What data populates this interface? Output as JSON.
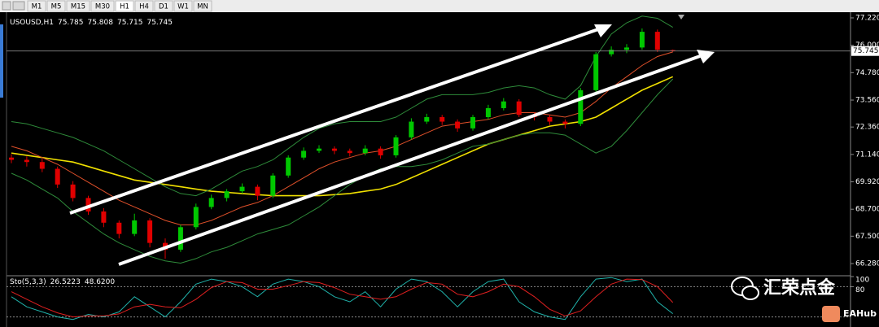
{
  "toolbar": {
    "timeframes": [
      "M1",
      "M5",
      "M15",
      "M30",
      "H1",
      "H4",
      "D1",
      "W1",
      "MN"
    ]
  },
  "watermark": {
    "text": "汇荣点金",
    "badge": "EAHub"
  },
  "chart_data": [
    {
      "type": "candlestick",
      "title": "USOUSD,H1",
      "ohlc": [
        75.785,
        75.808,
        75.715,
        75.745
      ],
      "up_color": "#00c800",
      "down_color": "#e00000",
      "open": [
        71.0,
        70.9,
        70.8,
        70.5,
        69.8,
        69.2,
        68.6,
        68.1,
        67.6,
        68.2,
        67.2,
        66.9,
        67.9,
        68.8,
        69.2,
        69.5,
        69.7,
        69.3,
        70.2,
        71.0,
        71.3,
        71.4,
        71.3,
        71.2,
        71.4,
        71.1,
        71.9,
        72.6,
        72.8,
        72.6,
        72.3,
        72.8,
        73.2,
        73.5,
        72.9,
        72.8,
        72.6,
        72.5,
        74.0,
        75.6,
        75.8,
        75.9,
        76.6,
        75.785
      ],
      "high": [
        71.15,
        71.05,
        70.95,
        70.6,
        69.95,
        69.3,
        68.75,
        68.2,
        68.5,
        68.3,
        67.4,
        68.0,
        68.95,
        69.35,
        69.6,
        69.85,
        69.8,
        70.3,
        71.1,
        71.45,
        71.55,
        71.5,
        71.4,
        71.55,
        71.5,
        72.0,
        72.75,
        72.95,
        72.9,
        72.7,
        72.9,
        73.35,
        73.65,
        73.6,
        73.0,
        72.9,
        72.7,
        74.1,
        75.7,
        75.95,
        76.05,
        76.75,
        76.7,
        75.808
      ],
      "low": [
        70.75,
        70.6,
        70.35,
        69.65,
        69.05,
        68.45,
        67.9,
        67.4,
        67.5,
        67.0,
        66.5,
        66.8,
        67.8,
        68.7,
        69.05,
        69.4,
        69.1,
        69.2,
        70.1,
        70.9,
        71.2,
        71.15,
        71.05,
        71.1,
        70.95,
        71.0,
        71.8,
        72.5,
        72.45,
        72.15,
        72.2,
        72.7,
        73.1,
        72.8,
        72.65,
        72.45,
        72.3,
        72.4,
        73.9,
        75.5,
        75.65,
        75.8,
        75.7,
        75.715
      ],
      "close": [
        70.9,
        70.8,
        70.5,
        69.8,
        69.2,
        68.6,
        68.1,
        67.6,
        68.2,
        67.2,
        66.9,
        67.9,
        68.8,
        69.2,
        69.5,
        69.7,
        69.3,
        70.2,
        71.0,
        71.3,
        71.4,
        71.3,
        71.2,
        71.4,
        71.1,
        71.9,
        72.6,
        72.8,
        72.6,
        72.3,
        72.8,
        73.2,
        73.5,
        72.9,
        72.8,
        72.6,
        72.5,
        74.0,
        75.6,
        75.8,
        75.9,
        76.6,
        75.8,
        75.745
      ],
      "series": [
        {
          "color": "#f0e000",
          "values": [
            71.2,
            71.1,
            71.0,
            70.9,
            70.8,
            70.6,
            70.4,
            70.2,
            70.0,
            69.9,
            69.8,
            69.7,
            69.6,
            69.5,
            69.45,
            69.4,
            69.35,
            69.3,
            69.3,
            69.3,
            69.3,
            69.35,
            69.4,
            69.5,
            69.6,
            69.8,
            70.1,
            70.4,
            70.7,
            71.0,
            71.3,
            71.6,
            71.8,
            72.0,
            72.2,
            72.4,
            72.5,
            72.6,
            72.8,
            73.2,
            73.6,
            74.0,
            74.3,
            74.6
          ]
        },
        {
          "color": "#e0502a",
          "values": [
            71.5,
            71.3,
            71.0,
            70.7,
            70.3,
            69.9,
            69.5,
            69.1,
            68.8,
            68.5,
            68.2,
            68.0,
            68.0,
            68.2,
            68.5,
            68.8,
            69.0,
            69.3,
            69.7,
            70.1,
            70.5,
            70.8,
            71.0,
            71.2,
            71.3,
            71.5,
            71.8,
            72.1,
            72.4,
            72.5,
            72.6,
            72.7,
            72.9,
            73.0,
            73.0,
            72.9,
            72.8,
            73.0,
            73.5,
            74.1,
            74.6,
            75.1,
            75.5,
            75.7
          ]
        },
        {
          "color": "#2e8b3a",
          "values": [
            72.6,
            72.5,
            72.3,
            72.1,
            71.9,
            71.6,
            71.3,
            70.9,
            70.5,
            70.1,
            69.7,
            69.4,
            69.3,
            69.6,
            70.0,
            70.4,
            70.6,
            70.9,
            71.4,
            71.9,
            72.3,
            72.5,
            72.6,
            72.6,
            72.6,
            72.8,
            73.2,
            73.6,
            73.8,
            73.8,
            73.8,
            73.9,
            74.1,
            74.2,
            74.1,
            73.8,
            73.6,
            74.2,
            75.5,
            76.5,
            77.0,
            77.3,
            77.2,
            76.8
          ]
        },
        {
          "color": "#2e8b3a",
          "values": [
            70.3,
            70.0,
            69.6,
            69.2,
            68.6,
            68.1,
            67.6,
            67.2,
            66.9,
            66.6,
            66.4,
            66.3,
            66.5,
            66.8,
            67.0,
            67.3,
            67.6,
            67.8,
            68.0,
            68.4,
            68.8,
            69.3,
            69.8,
            70.2,
            70.5,
            70.6,
            70.6,
            70.7,
            70.9,
            71.2,
            71.5,
            71.6,
            71.8,
            72.0,
            72.1,
            72.1,
            72.0,
            71.6,
            71.2,
            71.5,
            72.2,
            73.0,
            73.8,
            74.5
          ]
        }
      ],
      "ylim": [
        65.81,
        77.4
      ],
      "yticks": [
        {
          "value": 77.22,
          "label": "77.220"
        },
        {
          "value": 76.0,
          "label": "76.000"
        },
        {
          "value": 74.78,
          "label": "74.780"
        },
        {
          "value": 73.56,
          "label": "73.560"
        },
        {
          "value": 72.36,
          "label": "72.360"
        },
        {
          "value": 71.14,
          "label": "71.140"
        },
        {
          "value": 69.92,
          "label": "69.920"
        },
        {
          "value": 68.7,
          "label": "68.700"
        },
        {
          "value": 67.5,
          "label": "67.500"
        },
        {
          "value": 66.28,
          "label": "66.280"
        }
      ]
    },
    {
      "type": "line",
      "title": "Sto(5,3,3)",
      "values": [
        26.5223,
        {
          "value": 48.62,
          "label": "48.6200"
        }
      ],
      "series": [
        {
          "color": "#20b2aa",
          "values": [
            60,
            40,
            30,
            20,
            15,
            25,
            20,
            30,
            60,
            40,
            20,
            50,
            85,
            95,
            90,
            80,
            60,
            85,
            95,
            90,
            80,
            60,
            50,
            70,
            40,
            75,
            95,
            90,
            70,
            40,
            70,
            90,
            95,
            50,
            30,
            20,
            15,
            60,
            95,
            98,
            90,
            95,
            50,
            26.5223
          ]
        },
        {
          "color": "#e02020",
          "values": [
            70,
            55,
            40,
            28,
            20,
            22,
            22,
            26,
            40,
            45,
            40,
            38,
            55,
            78,
            90,
            88,
            75,
            75,
            82,
            90,
            88,
            78,
            65,
            60,
            55,
            60,
            75,
            88,
            85,
            65,
            60,
            70,
            85,
            80,
            60,
            35,
            22,
            32,
            60,
            85,
            95,
            94,
            80,
            48.62
          ]
        }
      ],
      "ylim": [
        0,
        100
      ],
      "yticks": [
        100,
        80
      ],
      "levels": [
        80,
        20
      ]
    }
  ]
}
